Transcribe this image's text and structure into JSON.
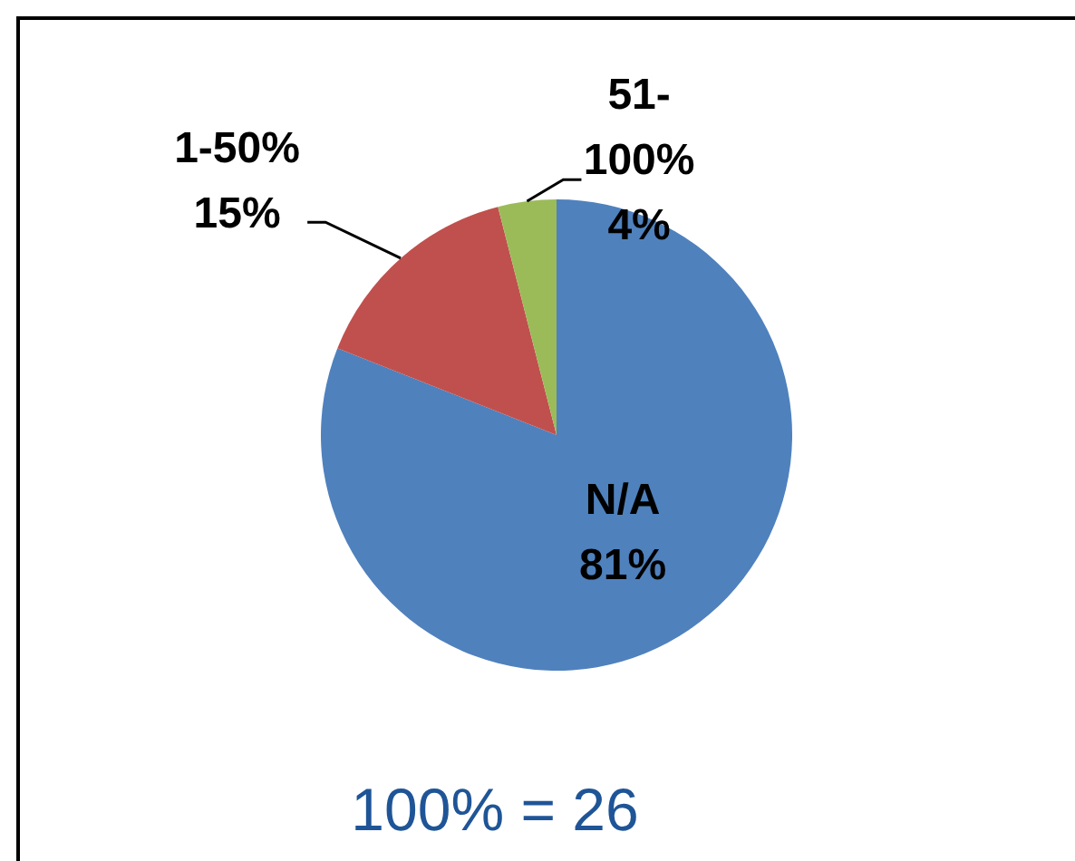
{
  "chart_data": {
    "type": "pie",
    "categories": [
      "N/A",
      "1-50%",
      "51-100%"
    ],
    "values": [
      81,
      15,
      4
    ],
    "colors": [
      "#4f81bd",
      "#c0504d",
      "#9bbb59"
    ],
    "value_labels": [
      "81%",
      "15%",
      "4%"
    ],
    "annotations": [
      "100% = 26"
    ]
  }
}
